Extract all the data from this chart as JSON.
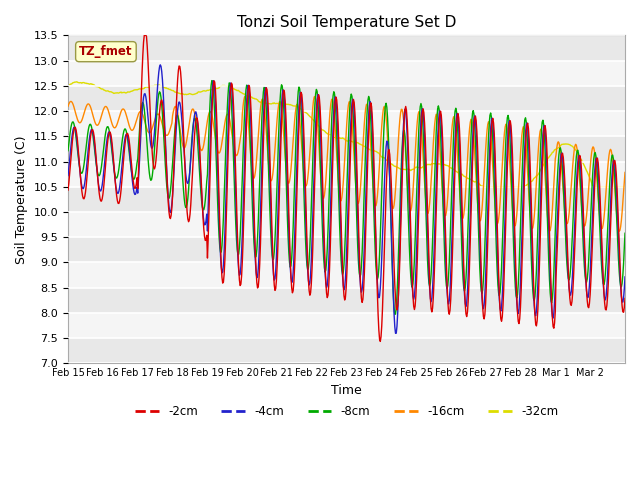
{
  "title": "Tonzi Soil Temperature Set D",
  "xlabel": "Time",
  "ylabel": "Soil Temperature (C)",
  "ylim": [
    7.0,
    13.5
  ],
  "legend_label": "TZ_fmet",
  "series_labels": [
    "-2cm",
    "-4cm",
    "-8cm",
    "-16cm",
    "-32cm"
  ],
  "series_colors": [
    "#dd0000",
    "#2222cc",
    "#00aa00",
    "#ff8800",
    "#dddd00"
  ],
  "xtick_labels": [
    "Feb 15",
    "Feb 16",
    "Feb 17",
    "Feb 18",
    "Feb 19",
    "Feb 20",
    "Feb 21",
    "Feb 22",
    "Feb 23",
    "Feb 24",
    "Feb 25",
    "Feb 26",
    "Feb 27",
    "Feb 28",
    "Mar 1",
    "Mar 2"
  ],
  "background_color": "#ffffff",
  "plot_bg_color": "#ffffff",
  "grid_color": "#dddddd",
  "n_days": 16
}
